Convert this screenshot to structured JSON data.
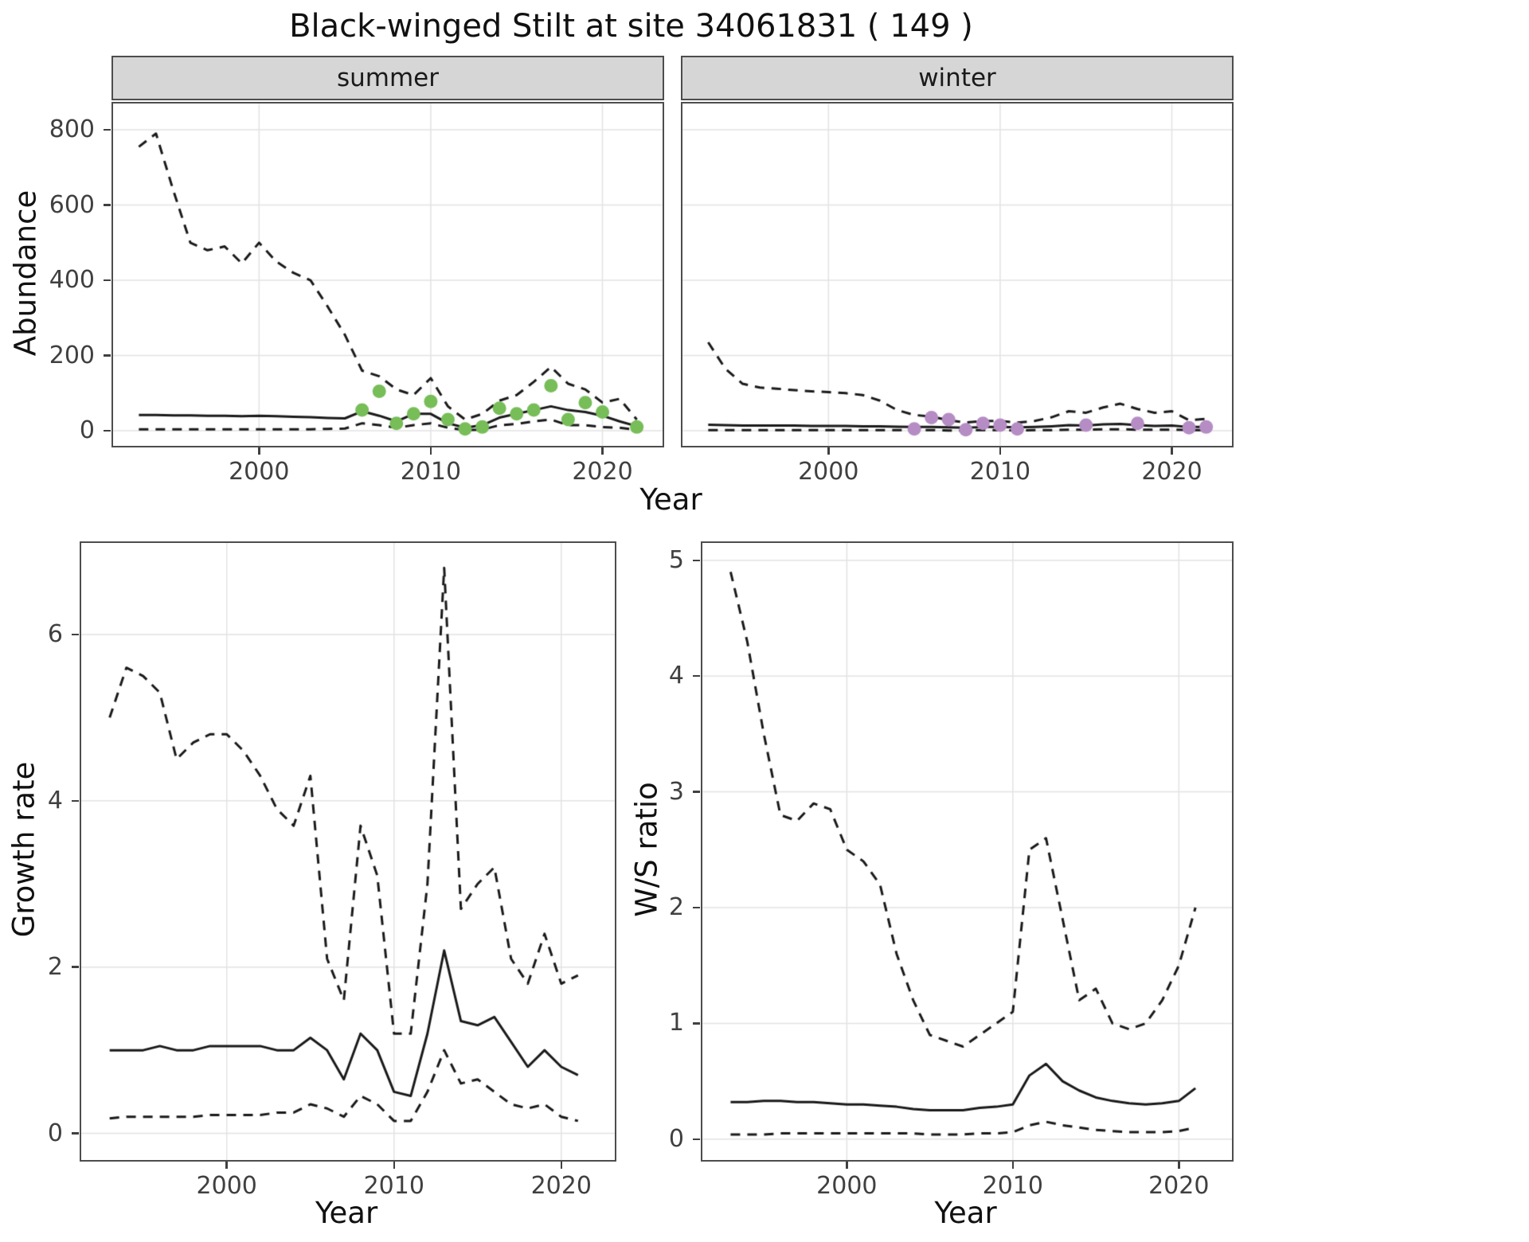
{
  "title": "Black-winged Stilt at site 34061831 ( 149 )",
  "labels": {
    "abundance": "Abundance",
    "year": "Year",
    "growth_rate": "Growth rate",
    "ws_ratio": "W/S ratio"
  },
  "colors": {
    "background": "#ffffff",
    "line": "#1a1a1a",
    "grid": "#e3e3e3",
    "panel_border": "#4d4d4d",
    "strip_background": "#d6d6d6",
    "tick_text": "#404040",
    "summer_points": "#77bd58",
    "winter_points": "#b58cc4"
  },
  "chart_data": [
    {
      "type": "line",
      "name": "summer_abundance",
      "facet": "summer",
      "xlabel": "Year",
      "ylabel": "Abundance",
      "xlim": [
        1991.5,
        2023.5
      ],
      "ylim": [
        -40,
        870
      ],
      "xticks": [
        2000,
        2010,
        2020
      ],
      "yticks": [
        0,
        200,
        400,
        600,
        800
      ],
      "x": [
        1993,
        1994,
        1995,
        1996,
        1997,
        1998,
        1999,
        2000,
        2001,
        2002,
        2003,
        2004,
        2005,
        2006,
        2007,
        2008,
        2009,
        2010,
        2011,
        2012,
        2013,
        2014,
        2015,
        2016,
        2017,
        2018,
        2019,
        2020,
        2021,
        2022
      ],
      "series": [
        {
          "name": "upper_ci",
          "style": "dashed",
          "values": [
            755,
            790,
            640,
            500,
            480,
            490,
            445,
            500,
            450,
            420,
            400,
            330,
            255,
            160,
            145,
            110,
            95,
            140,
            65,
            30,
            45,
            80,
            95,
            130,
            170,
            125,
            110,
            75,
            85,
            30
          ]
        },
        {
          "name": "median",
          "style": "solid",
          "values": [
            42,
            42,
            41,
            41,
            40,
            40,
            39,
            40,
            39,
            37,
            36,
            34,
            33,
            52,
            40,
            25,
            45,
            45,
            20,
            8,
            15,
            35,
            45,
            55,
            65,
            55,
            50,
            40,
            25,
            12
          ]
        },
        {
          "name": "lower_ci",
          "style": "dashed",
          "values": [
            4,
            4,
            4,
            4,
            4,
            4,
            4,
            4,
            4,
            4,
            4,
            5,
            6,
            20,
            15,
            8,
            15,
            20,
            8,
            2,
            3,
            15,
            18,
            25,
            30,
            15,
            15,
            10,
            8,
            3
          ]
        }
      ],
      "points": {
        "name": "observed",
        "color": "#77bd58",
        "data": [
          [
            2006,
            55
          ],
          [
            2007,
            105
          ],
          [
            2008,
            20
          ],
          [
            2009,
            45
          ],
          [
            2010,
            78
          ],
          [
            2011,
            30
          ],
          [
            2012,
            5
          ],
          [
            2013,
            10
          ],
          [
            2014,
            60
          ],
          [
            2015,
            45
          ],
          [
            2016,
            55
          ],
          [
            2017,
            120
          ],
          [
            2018,
            30
          ],
          [
            2019,
            75
          ],
          [
            2020,
            50
          ],
          [
            2022,
            10
          ]
        ]
      }
    },
    {
      "type": "line",
      "name": "winter_abundance",
      "facet": "winter",
      "xlabel": "Year",
      "ylabel": "Abundance",
      "xlim": [
        1991.5,
        2023.5
      ],
      "ylim": [
        -40,
        870
      ],
      "xticks": [
        2000,
        2010,
        2020
      ],
      "yticks": [
        0,
        200,
        400,
        600,
        800
      ],
      "x": [
        1993,
        1994,
        1995,
        1996,
        1997,
        1998,
        1999,
        2000,
        2001,
        2002,
        2003,
        2004,
        2005,
        2006,
        2007,
        2008,
        2009,
        2010,
        2011,
        2012,
        2013,
        2014,
        2015,
        2016,
        2017,
        2018,
        2019,
        2020,
        2021,
        2022
      ],
      "series": [
        {
          "name": "upper_ci",
          "style": "dashed",
          "values": [
            235,
            165,
            125,
            115,
            112,
            108,
            105,
            103,
            100,
            95,
            80,
            55,
            42,
            38,
            28,
            22,
            26,
            26,
            22,
            26,
            36,
            52,
            48,
            62,
            72,
            58,
            48,
            52,
            28,
            32
          ]
        },
        {
          "name": "median",
          "style": "solid",
          "values": [
            16,
            15,
            14,
            14,
            14,
            14,
            13,
            13,
            13,
            12,
            12,
            11,
            10,
            10,
            9,
            8,
            10,
            10,
            9,
            10,
            12,
            15,
            14,
            17,
            18,
            15,
            13,
            14,
            10,
            10
          ]
        },
        {
          "name": "lower_ci",
          "style": "dashed",
          "values": [
            2,
            2,
            2,
            2,
            2,
            2,
            2,
            2,
            2,
            2,
            2,
            2,
            2,
            2,
            1,
            1,
            2,
            2,
            1,
            2,
            2,
            3,
            3,
            4,
            4,
            3,
            3,
            3,
            2,
            2
          ]
        }
      ],
      "points": {
        "name": "observed",
        "color": "#b58cc4",
        "data": [
          [
            2005,
            5
          ],
          [
            2006,
            35
          ],
          [
            2007,
            30
          ],
          [
            2008,
            3
          ],
          [
            2009,
            20
          ],
          [
            2010,
            15
          ],
          [
            2011,
            5
          ],
          [
            2015,
            15
          ],
          [
            2018,
            20
          ],
          [
            2021,
            8
          ],
          [
            2022,
            10
          ]
        ]
      }
    },
    {
      "type": "line",
      "name": "growth_rate",
      "xlabel": "Year",
      "ylabel": "Growth rate",
      "xlim": [
        1991.3,
        2023.2
      ],
      "ylim": [
        -0.32,
        7.1
      ],
      "xticks": [
        2000,
        2010,
        2020
      ],
      "yticks": [
        0,
        2,
        4,
        6
      ],
      "x": [
        1993,
        1994,
        1995,
        1996,
        1997,
        1998,
        1999,
        2000,
        2001,
        2002,
        2003,
        2004,
        2005,
        2006,
        2007,
        2008,
        2009,
        2010,
        2011,
        2012,
        2013,
        2014,
        2015,
        2016,
        2017,
        2018,
        2019,
        2020,
        2021
      ],
      "series": [
        {
          "name": "upper_ci",
          "style": "dashed",
          "values": [
            5.0,
            5.6,
            5.5,
            5.3,
            4.5,
            4.7,
            4.8,
            4.8,
            4.6,
            4.3,
            3.9,
            3.7,
            4.3,
            2.1,
            1.6,
            3.7,
            3.1,
            1.2,
            1.2,
            3.0,
            6.8,
            2.7,
            3.0,
            3.2,
            2.1,
            1.8,
            2.4,
            1.8,
            1.9
          ]
        },
        {
          "name": "median",
          "style": "solid",
          "values": [
            1.0,
            1.0,
            1.0,
            1.05,
            1.0,
            1.0,
            1.05,
            1.05,
            1.05,
            1.05,
            1.0,
            1.0,
            1.15,
            1.0,
            0.65,
            1.2,
            1.0,
            0.5,
            0.45,
            1.2,
            2.2,
            1.35,
            1.3,
            1.4,
            1.1,
            0.8,
            1.0,
            0.8,
            0.7
          ]
        },
        {
          "name": "lower_ci",
          "style": "dashed",
          "values": [
            0.18,
            0.2,
            0.2,
            0.2,
            0.2,
            0.2,
            0.22,
            0.22,
            0.22,
            0.22,
            0.25,
            0.25,
            0.35,
            0.3,
            0.2,
            0.45,
            0.35,
            0.15,
            0.15,
            0.5,
            1.0,
            0.6,
            0.65,
            0.5,
            0.35,
            0.3,
            0.35,
            0.2,
            0.15
          ]
        }
      ]
    },
    {
      "type": "line",
      "name": "ws_ratio",
      "xlabel": "Year",
      "ylabel": "W/S ratio",
      "xlim": [
        1991.3,
        2023.2
      ],
      "ylim": [
        -0.18,
        5.15
      ],
      "xticks": [
        2000,
        2010,
        2020
      ],
      "yticks": [
        0,
        1,
        2,
        3,
        4,
        5
      ],
      "x": [
        1993,
        1994,
        1995,
        1996,
        1997,
        1998,
        1999,
        2000,
        2001,
        2002,
        2003,
        2004,
        2005,
        2006,
        2007,
        2008,
        2009,
        2010,
        2011,
        2012,
        2013,
        2014,
        2015,
        2016,
        2017,
        2018,
        2019,
        2020,
        2021
      ],
      "series": [
        {
          "name": "upper_ci",
          "style": "dashed",
          "values": [
            4.9,
            4.3,
            3.5,
            2.8,
            2.75,
            2.9,
            2.85,
            2.5,
            2.4,
            2.2,
            1.6,
            1.2,
            0.9,
            0.85,
            0.8,
            0.9,
            1.0,
            1.1,
            2.5,
            2.6,
            1.9,
            1.2,
            1.3,
            1.0,
            0.95,
            1.0,
            1.2,
            1.5,
            2.0
          ]
        },
        {
          "name": "median",
          "style": "solid",
          "values": [
            0.32,
            0.32,
            0.33,
            0.33,
            0.32,
            0.32,
            0.31,
            0.3,
            0.3,
            0.29,
            0.28,
            0.26,
            0.25,
            0.25,
            0.25,
            0.27,
            0.28,
            0.3,
            0.55,
            0.65,
            0.5,
            0.42,
            0.36,
            0.33,
            0.31,
            0.3,
            0.31,
            0.33,
            0.44
          ]
        },
        {
          "name": "lower_ci",
          "style": "dashed",
          "values": [
            0.04,
            0.04,
            0.04,
            0.05,
            0.05,
            0.05,
            0.05,
            0.05,
            0.05,
            0.05,
            0.05,
            0.05,
            0.04,
            0.04,
            0.04,
            0.05,
            0.05,
            0.06,
            0.12,
            0.15,
            0.12,
            0.1,
            0.08,
            0.07,
            0.06,
            0.06,
            0.06,
            0.07,
            0.1
          ]
        }
      ]
    }
  ]
}
